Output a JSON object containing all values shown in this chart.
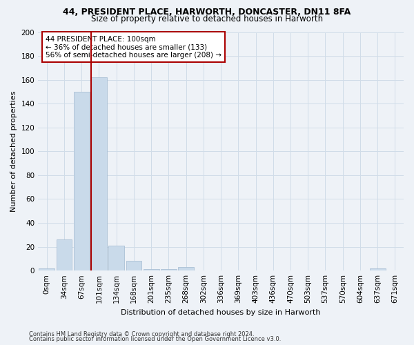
{
  "title1": "44, PRESIDENT PLACE, HARWORTH, DONCASTER, DN11 8FA",
  "title2": "Size of property relative to detached houses in Harworth",
  "xlabel": "Distribution of detached houses by size in Harworth",
  "ylabel": "Number of detached properties",
  "bar_labels": [
    "0sqm",
    "34sqm",
    "67sqm",
    "101sqm",
    "134sqm",
    "168sqm",
    "201sqm",
    "235sqm",
    "268sqm",
    "302sqm",
    "336sqm",
    "369sqm",
    "403sqm",
    "436sqm",
    "470sqm",
    "503sqm",
    "537sqm",
    "570sqm",
    "604sqm",
    "637sqm",
    "671sqm"
  ],
  "bar_values": [
    2,
    26,
    150,
    162,
    21,
    8,
    1,
    1,
    3,
    0,
    0,
    0,
    0,
    0,
    0,
    0,
    0,
    0,
    0,
    2,
    0
  ],
  "bar_color": "#c9daea",
  "bar_edge_color": "#aac0d5",
  "grid_color": "#d0dce8",
  "property_line_index": 3,
  "property_line_color": "#aa0000",
  "annotation_text": "44 PRESIDENT PLACE: 100sqm\n← 36% of detached houses are smaller (133)\n56% of semi-detached houses are larger (208) →",
  "annotation_box_facecolor": "#ffffff",
  "annotation_box_edgecolor": "#aa0000",
  "ylim": [
    0,
    200
  ],
  "yticks": [
    0,
    20,
    40,
    60,
    80,
    100,
    120,
    140,
    160,
    180,
    200
  ],
  "footnote1": "Contains HM Land Registry data © Crown copyright and database right 2024.",
  "footnote2": "Contains public sector information licensed under the Open Government Licence v3.0.",
  "bg_color": "#eef2f7",
  "plot_bg_color": "#eef2f7",
  "title1_fontsize": 9,
  "title2_fontsize": 8.5,
  "tick_fontsize": 7.5,
  "ylabel_fontsize": 8,
  "xlabel_fontsize": 8,
  "annot_fontsize": 7.5
}
